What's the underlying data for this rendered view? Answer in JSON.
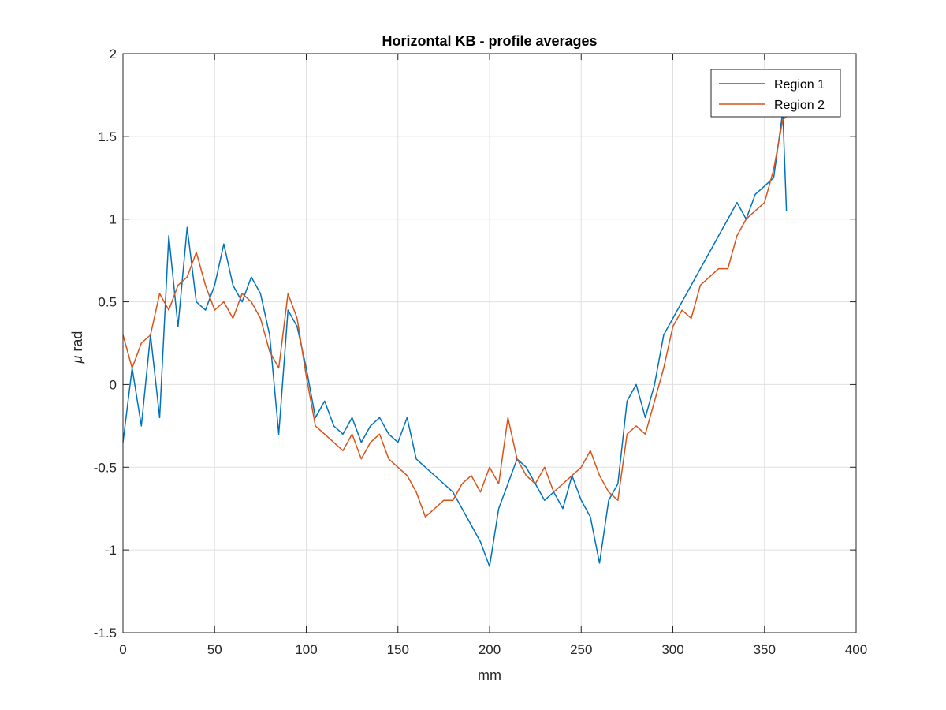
{
  "chart_data": {
    "type": "line",
    "title": "Horizontal KB -  profile averages",
    "xlabel": "mm",
    "ylabel_symbol": "μ",
    "ylabel_text": " rad",
    "xlim": [
      0,
      400
    ],
    "ylim": [
      -1.5,
      2
    ],
    "xticks": [
      0,
      50,
      100,
      150,
      200,
      250,
      300,
      350,
      400
    ],
    "xtick_labels": [
      "0",
      "50",
      "100",
      "150",
      "200",
      "250",
      "300",
      "350",
      "400"
    ],
    "yticks": [
      -1.5,
      -1,
      -0.5,
      0,
      0.5,
      1,
      1.5,
      2
    ],
    "ytick_labels": [
      "-1.5",
      "-1",
      "-0.5",
      "0",
      "0.5",
      "1",
      "1.5",
      "2"
    ],
    "grid": true,
    "legend_position": "top-right",
    "series": [
      {
        "name": "Region 1",
        "color": "#0072BD",
        "x": [
          0,
          5,
          10,
          15,
          20,
          25,
          30,
          35,
          40,
          45,
          50,
          55,
          60,
          65,
          70,
          75,
          80,
          85,
          90,
          95,
          100,
          105,
          110,
          115,
          120,
          125,
          130,
          135,
          140,
          145,
          150,
          155,
          160,
          165,
          170,
          175,
          180,
          185,
          190,
          195,
          200,
          205,
          210,
          215,
          220,
          225,
          230,
          235,
          240,
          245,
          250,
          255,
          260,
          265,
          270,
          275,
          280,
          285,
          290,
          295,
          300,
          305,
          310,
          315,
          320,
          325,
          330,
          335,
          340,
          345,
          350,
          355,
          360,
          362
        ],
        "y": [
          -0.35,
          0.1,
          -0.25,
          0.3,
          -0.2,
          0.9,
          0.35,
          0.95,
          0.5,
          0.45,
          0.6,
          0.85,
          0.6,
          0.5,
          0.65,
          0.55,
          0.3,
          -0.3,
          0.45,
          0.35,
          0.1,
          -0.2,
          -0.1,
          -0.25,
          -0.3,
          -0.2,
          -0.35,
          -0.25,
          -0.2,
          -0.3,
          -0.35,
          -0.2,
          -0.45,
          -0.5,
          -0.55,
          -0.6,
          -0.65,
          -0.75,
          -0.85,
          -0.95,
          -1.1,
          -0.75,
          -0.6,
          -0.45,
          -0.5,
          -0.6,
          -0.7,
          -0.65,
          -0.75,
          -0.55,
          -0.7,
          -0.8,
          -1.08,
          -0.7,
          -0.6,
          -0.1,
          0.0,
          -0.2,
          0.0,
          0.3,
          0.4,
          0.5,
          0.6,
          0.7,
          0.8,
          0.9,
          1.0,
          1.1,
          1.0,
          1.15,
          1.2,
          1.25,
          1.65,
          1.05
        ]
      },
      {
        "name": "Region 2",
        "color": "#D95319",
        "x": [
          0,
          5,
          10,
          15,
          20,
          25,
          30,
          35,
          40,
          45,
          50,
          55,
          60,
          65,
          70,
          75,
          80,
          85,
          90,
          95,
          100,
          105,
          110,
          115,
          120,
          125,
          130,
          135,
          140,
          145,
          150,
          155,
          160,
          165,
          170,
          175,
          180,
          185,
          190,
          195,
          200,
          205,
          210,
          215,
          220,
          225,
          230,
          235,
          240,
          245,
          250,
          255,
          260,
          265,
          270,
          275,
          280,
          285,
          290,
          295,
          300,
          305,
          310,
          315,
          320,
          325,
          330,
          335,
          340,
          345,
          350,
          355,
          360,
          362
        ],
        "y": [
          0.3,
          0.1,
          0.25,
          0.3,
          0.55,
          0.45,
          0.6,
          0.65,
          0.8,
          0.6,
          0.45,
          0.5,
          0.4,
          0.55,
          0.5,
          0.4,
          0.2,
          0.1,
          0.55,
          0.4,
          0.05,
          -0.25,
          -0.3,
          -0.35,
          -0.4,
          -0.3,
          -0.45,
          -0.35,
          -0.3,
          -0.45,
          -0.5,
          -0.55,
          -0.65,
          -0.8,
          -0.75,
          -0.7,
          -0.7,
          -0.6,
          -0.55,
          -0.65,
          -0.5,
          -0.6,
          -0.2,
          -0.45,
          -0.55,
          -0.6,
          -0.5,
          -0.65,
          -0.6,
          -0.55,
          -0.5,
          -0.4,
          -0.55,
          -0.65,
          -0.7,
          -0.3,
          -0.25,
          -0.3,
          -0.1,
          0.1,
          0.35,
          0.45,
          0.4,
          0.6,
          0.65,
          0.7,
          0.7,
          0.9,
          1.0,
          1.05,
          1.1,
          1.3,
          1.6,
          1.62
        ]
      }
    ]
  }
}
